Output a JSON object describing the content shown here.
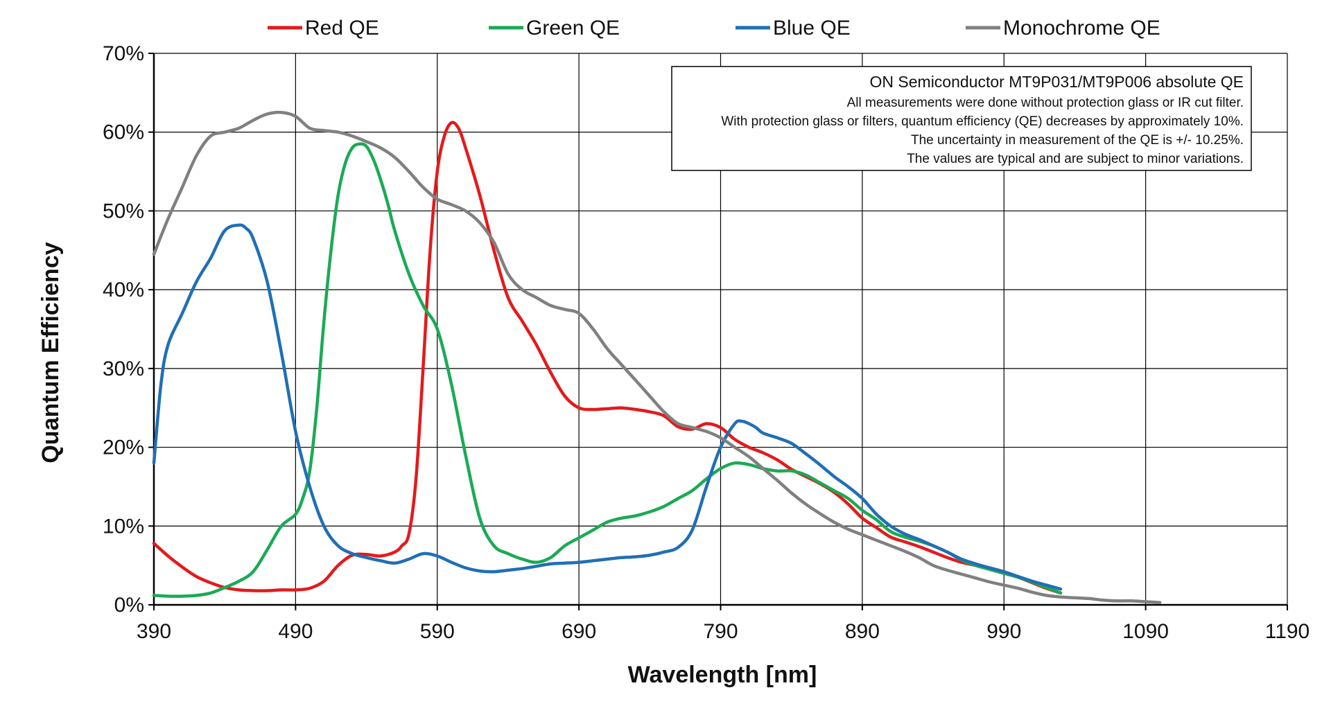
{
  "chart_data": {
    "type": "line",
    "title": "",
    "xlabel": "Wavelength [nm]",
    "ylabel": "Quantum Efficiency",
    "xlim": [
      390,
      1190
    ],
    "ylim": [
      0,
      70
    ],
    "x_ticks": [
      390,
      490,
      590,
      690,
      790,
      890,
      990,
      1090,
      1190
    ],
    "x_tick_labels": [
      "390",
      "490",
      "590",
      "690",
      "790",
      "890",
      "990",
      "1090",
      "1190"
    ],
    "y_ticks": [
      0,
      10,
      20,
      30,
      40,
      50,
      60,
      70
    ],
    "y_tick_labels": [
      "0%",
      "10%",
      "20%",
      "30%",
      "40%",
      "50%",
      "60%",
      "70%"
    ],
    "grid": true,
    "legend_position": "top",
    "annotation": {
      "title": "ON Semiconductor MT9P031/MT9P006 absolute QE",
      "lines": [
        "All measurements were done without protection glass or IR cut filter.",
        "With protection glass or filters, quantum efficiency (QE) decreases by approximately 10%.",
        "The uncertainty in measurement of the QE is +/- 10.25%.",
        "The values are typical and are subject to minor variations."
      ]
    },
    "series": [
      {
        "name": "Red QE",
        "color": "#E31A1C",
        "x": [
          390,
          400,
          410,
          420,
          430,
          440,
          450,
          460,
          470,
          480,
          490,
          500,
          510,
          520,
          530,
          540,
          550,
          560,
          565,
          570,
          575,
          580,
          585,
          590,
          595,
          600,
          605,
          610,
          620,
          630,
          640,
          650,
          660,
          670,
          680,
          690,
          700,
          710,
          720,
          730,
          740,
          750,
          760,
          770,
          780,
          790,
          800,
          810,
          820,
          830,
          840,
          850,
          860,
          870,
          880,
          890,
          900,
          910,
          920,
          930,
          940,
          950,
          960,
          970,
          980,
          990,
          1000,
          1010,
          1020,
          1030
        ],
        "y": [
          7.8,
          6.2,
          4.8,
          3.6,
          2.8,
          2.2,
          1.9,
          1.8,
          1.8,
          1.9,
          1.9,
          2.1,
          3.0,
          5.0,
          6.3,
          6.4,
          6.2,
          6.7,
          7.5,
          9.0,
          16.0,
          30.0,
          45.0,
          55.0,
          59.5,
          61.2,
          60.5,
          58.0,
          52.0,
          45.0,
          39.0,
          36.0,
          33.0,
          29.5,
          26.5,
          25.0,
          24.8,
          24.9,
          25.0,
          24.8,
          24.5,
          24.0,
          22.6,
          22.3,
          23.0,
          22.5,
          21.0,
          20.0,
          19.3,
          18.4,
          17.2,
          16.3,
          15.4,
          14.3,
          12.8,
          11.0,
          9.8,
          8.6,
          8.0,
          7.4,
          6.7,
          6.0,
          5.4,
          5.0,
          4.5,
          4.0,
          3.5,
          2.8,
          2.1,
          1.5
        ]
      },
      {
        "name": "Green QE",
        "color": "#1AAA55",
        "x": [
          390,
          400,
          410,
          420,
          430,
          440,
          450,
          460,
          470,
          480,
          490,
          495,
          500,
          505,
          510,
          515,
          520,
          525,
          530,
          535,
          540,
          545,
          550,
          555,
          560,
          570,
          580,
          590,
          600,
          610,
          620,
          630,
          640,
          650,
          660,
          670,
          680,
          690,
          700,
          710,
          720,
          730,
          740,
          750,
          760,
          770,
          780,
          790,
          800,
          810,
          820,
          830,
          840,
          850,
          860,
          870,
          880,
          890,
          900,
          910,
          920,
          930,
          940,
          950,
          960,
          970,
          980,
          990,
          1000,
          1010,
          1020,
          1030
        ],
        "y": [
          1.2,
          1.1,
          1.1,
          1.2,
          1.5,
          2.2,
          3.0,
          4.2,
          7.0,
          10.0,
          11.5,
          13.5,
          17.0,
          25.0,
          36.0,
          45.0,
          52.0,
          56.0,
          58.0,
          58.5,
          58.2,
          56.5,
          54.0,
          51.0,
          47.5,
          42.0,
          38.0,
          35.0,
          28.0,
          19.0,
          11.0,
          7.5,
          6.5,
          5.8,
          5.4,
          6.0,
          7.5,
          8.5,
          9.5,
          10.5,
          11.0,
          11.3,
          11.8,
          12.5,
          13.5,
          14.5,
          16.0,
          17.3,
          18.0,
          17.8,
          17.3,
          17.0,
          17.0,
          16.5,
          15.5,
          14.5,
          13.5,
          12.0,
          10.8,
          9.3,
          8.6,
          8.1,
          7.5,
          6.7,
          5.7,
          5.0,
          4.5,
          4.0,
          3.5,
          2.9,
          2.2,
          1.5
        ]
      },
      {
        "name": "Blue QE",
        "color": "#1F6FB5",
        "x": [
          390,
          395,
          400,
          410,
          420,
          430,
          440,
          450,
          455,
          460,
          470,
          480,
          490,
          500,
          510,
          520,
          530,
          540,
          550,
          560,
          570,
          580,
          590,
          600,
          610,
          620,
          630,
          640,
          650,
          660,
          670,
          680,
          690,
          700,
          710,
          720,
          730,
          740,
          750,
          760,
          770,
          780,
          790,
          800,
          805,
          810,
          815,
          820,
          830,
          840,
          850,
          860,
          870,
          880,
          890,
          900,
          910,
          920,
          930,
          940,
          950,
          960,
          970,
          980,
          990,
          1000,
          1010,
          1020,
          1030
        ],
        "y": [
          18.0,
          28.0,
          33.0,
          37.0,
          41.0,
          44.0,
          47.5,
          48.2,
          47.8,
          46.5,
          41.0,
          32.0,
          22.0,
          15.0,
          10.0,
          7.5,
          6.5,
          6.0,
          5.6,
          5.3,
          5.8,
          6.5,
          6.2,
          5.4,
          4.7,
          4.3,
          4.2,
          4.4,
          4.6,
          4.9,
          5.2,
          5.3,
          5.4,
          5.6,
          5.8,
          6.0,
          6.1,
          6.3,
          6.7,
          7.3,
          9.5,
          15.0,
          20.0,
          23.0,
          23.3,
          23.0,
          22.5,
          21.8,
          21.2,
          20.5,
          19.2,
          17.8,
          16.3,
          15.0,
          13.5,
          11.5,
          10.0,
          9.0,
          8.3,
          7.5,
          6.7,
          5.8,
          5.2,
          4.7,
          4.2,
          3.6,
          3.0,
          2.5,
          2.0
        ]
      },
      {
        "name": "Monochrome QE",
        "color": "#808080",
        "x": [
          390,
          400,
          410,
          420,
          430,
          440,
          450,
          460,
          470,
          480,
          490,
          500,
          510,
          520,
          530,
          540,
          550,
          560,
          570,
          580,
          590,
          600,
          610,
          620,
          630,
          640,
          650,
          660,
          670,
          680,
          690,
          700,
          710,
          720,
          730,
          740,
          750,
          760,
          770,
          780,
          790,
          800,
          810,
          820,
          830,
          840,
          850,
          860,
          870,
          880,
          890,
          900,
          910,
          920,
          930,
          940,
          950,
          960,
          970,
          980,
          990,
          1000,
          1010,
          1020,
          1030,
          1040,
          1050,
          1060,
          1070,
          1080,
          1090,
          1100
        ],
        "y": [
          44.5,
          49.0,
          53.0,
          57.0,
          59.5,
          60.0,
          60.5,
          61.5,
          62.3,
          62.5,
          62.0,
          60.5,
          60.2,
          60.0,
          59.5,
          58.8,
          58.0,
          56.8,
          55.0,
          53.0,
          51.5,
          50.8,
          50.0,
          48.5,
          46.0,
          42.0,
          40.0,
          39.0,
          38.0,
          37.5,
          37.0,
          35.0,
          32.5,
          30.5,
          28.5,
          26.5,
          24.5,
          23.0,
          22.5,
          22.0,
          21.2,
          20.0,
          18.8,
          17.3,
          15.8,
          14.2,
          12.8,
          11.6,
          10.5,
          9.6,
          8.9,
          8.2,
          7.5,
          6.8,
          6.0,
          5.0,
          4.4,
          3.9,
          3.4,
          2.9,
          2.5,
          2.1,
          1.6,
          1.2,
          1.0,
          0.9,
          0.8,
          0.6,
          0.5,
          0.5,
          0.4,
          0.3
        ]
      }
    ]
  }
}
